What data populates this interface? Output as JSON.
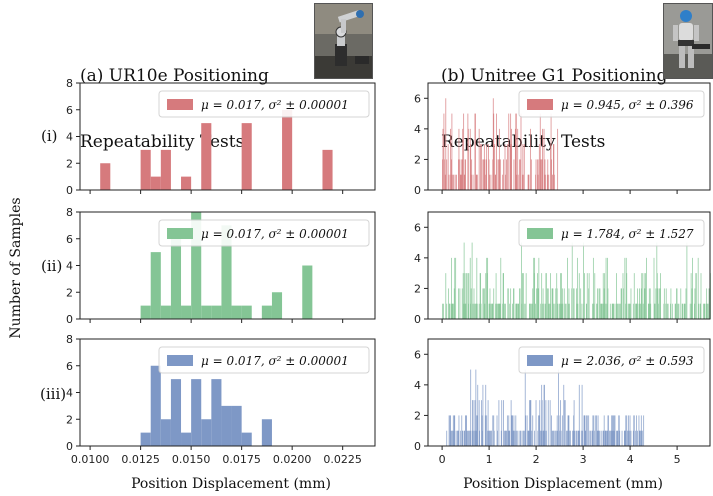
{
  "titles": {
    "left": [
      "(a) UR10e Positioning",
      "Repeatability Tests"
    ],
    "right": [
      "(b) Unitree G1 Positioning",
      "Repeatability Tests"
    ]
  },
  "photos": {
    "left": "ur10e-robot-arm-photo",
    "right": "unitree-g1-humanoid-photo"
  },
  "ylabel": "Number of Samples",
  "row_labels": [
    "(i)",
    "(ii)",
    "(iii)"
  ],
  "colors": {
    "red": "#d67a7d",
    "green": "#84c595",
    "blue": "#7e98c6"
  },
  "chart_data": [
    {
      "type": "bar",
      "panel": "a-i",
      "color": "#d67a7d",
      "bin_width": 0.0005,
      "bin_starts": [
        0.01,
        0.0105,
        0.011,
        0.0115,
        0.012,
        0.0125,
        0.013,
        0.0135,
        0.014,
        0.0145,
        0.015,
        0.0155,
        0.016,
        0.0165,
        0.017,
        0.0175,
        0.018,
        0.0185,
        0.019,
        0.0195,
        0.02,
        0.0205,
        0.021,
        0.0215,
        0.022,
        0.0225,
        0.023,
        0.0235
      ],
      "values": [
        0,
        2,
        0,
        0,
        0,
        3,
        1,
        3,
        0,
        1,
        0,
        5,
        0,
        0,
        0,
        5,
        0,
        0,
        0,
        6,
        0,
        0,
        0,
        3,
        0,
        0,
        0,
        0
      ],
      "legend": "μ = 0.017,  σ² ± 0.00001",
      "xlim": [
        0.0095,
        0.0241
      ],
      "ylim": [
        0,
        8
      ],
      "yticks": [
        "0",
        "2",
        "4",
        "6",
        "8"
      ],
      "xticks": []
    },
    {
      "type": "bar",
      "panel": "a-ii",
      "color": "#84c595",
      "bin_width": 0.0005,
      "bin_starts": [
        0.01,
        0.0105,
        0.011,
        0.0115,
        0.012,
        0.0125,
        0.013,
        0.0135,
        0.014,
        0.0145,
        0.015,
        0.0155,
        0.016,
        0.0165,
        0.017,
        0.0175,
        0.018,
        0.0185,
        0.019,
        0.0195,
        0.02,
        0.0205,
        0.021,
        0.0215,
        0.022,
        0.0225,
        0.023,
        0.0235
      ],
      "values": [
        0,
        0,
        0,
        0,
        0,
        1,
        5,
        1,
        6,
        1,
        8,
        1,
        1,
        7,
        1,
        1,
        0,
        1,
        2,
        0,
        0,
        4,
        0,
        0,
        0,
        0,
        0,
        0
      ],
      "legend": "μ = 0.017,  σ² ± 0.00001",
      "xlim": [
        0.0095,
        0.0241
      ],
      "ylim": [
        0,
        8
      ],
      "yticks": [
        "0",
        "2",
        "4",
        "6",
        "8"
      ],
      "xticks": []
    },
    {
      "type": "bar",
      "panel": "a-iii",
      "color": "#7e98c6",
      "bin_width": 0.0005,
      "bin_starts": [
        0.01,
        0.0105,
        0.011,
        0.0115,
        0.012,
        0.0125,
        0.013,
        0.0135,
        0.014,
        0.0145,
        0.015,
        0.0155,
        0.016,
        0.0165,
        0.017,
        0.0175,
        0.018,
        0.0185,
        0.019,
        0.0195,
        0.02,
        0.0205,
        0.021,
        0.0215,
        0.022,
        0.0225,
        0.023,
        0.0235
      ],
      "values": [
        0,
        0,
        0,
        0,
        0,
        1,
        6,
        2,
        5,
        1,
        5,
        2,
        5,
        3,
        3,
        1,
        0,
        2,
        0,
        0,
        0,
        0,
        0,
        0,
        0,
        0,
        0,
        0
      ],
      "legend": "μ = 0.017,  σ² ± 0.00001",
      "xlim": [
        0.0095,
        0.0241
      ],
      "ylim": [
        0,
        8
      ],
      "yticks": [
        "0",
        "2",
        "4",
        "6",
        "8"
      ],
      "xticks": [
        "0.0100",
        "0.0125",
        "0.0150",
        "0.0175",
        "0.0200",
        "0.0225"
      ],
      "xtick_values": [
        0.01,
        0.0125,
        0.015,
        0.0175,
        0.02,
        0.0225
      ]
    },
    {
      "type": "bar",
      "panel": "b-i",
      "color": "#d67a7d",
      "bin_width": 0.01,
      "value_range": [
        0.0,
        2.45
      ],
      "values_summary": "dense thin-bin histogram of 0–7 samples per bin between 0.0 and 2.45 mm",
      "legend": "μ = 0.945,  σ² ± 0.396",
      "xlim": [
        -0.3,
        5.7
      ],
      "ylim": [
        0,
        7
      ],
      "yticks": [
        "0",
        "2",
        "4",
        "6"
      ],
      "xticks": []
    },
    {
      "type": "bar",
      "panel": "b-ii",
      "color": "#84c595",
      "bin_width": 0.01,
      "value_range": [
        0.0,
        5.7
      ],
      "values_summary": "dense thin-bin histogram of 0–5 samples per bin spread between 0.0 and 5.7 mm",
      "legend": "μ = 1.784,  σ² ± 1.527",
      "xlim": [
        -0.3,
        5.7
      ],
      "ylim": [
        0,
        7
      ],
      "yticks": [
        "0",
        "2",
        "4",
        "6"
      ],
      "xticks": []
    },
    {
      "type": "bar",
      "panel": "b-iii",
      "color": "#7e98c6",
      "bin_width": 0.01,
      "value_range": [
        0.05,
        4.3
      ],
      "values_summary": "dense thin-bin histogram of 0–5 samples per bin between 0.05 and 4.3 mm, concentrated around 1.5–2.5 mm",
      "legend": "μ = 2.036,  σ² ± 0.593",
      "xlim": [
        -0.3,
        5.7
      ],
      "ylim": [
        0,
        7
      ],
      "yticks": [
        "0",
        "2",
        "4",
        "6"
      ],
      "xticks": [
        "0",
        "1",
        "2",
        "3",
        "4",
        "5"
      ],
      "xtick_values": [
        0,
        1,
        2,
        3,
        4,
        5
      ]
    }
  ],
  "xlabel_left": "Position Displacement (mm)",
  "xlabel_right": "Position Displacement (mm)"
}
